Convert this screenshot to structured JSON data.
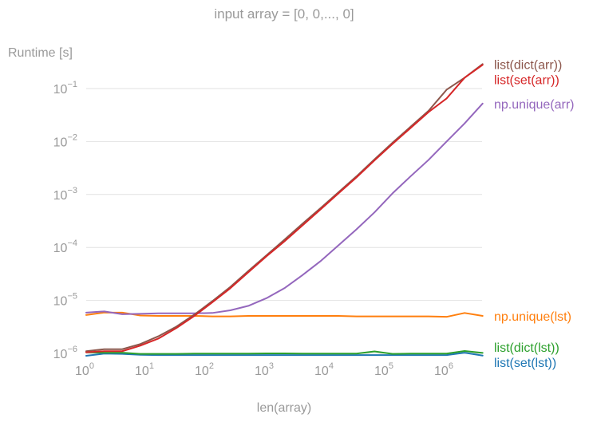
{
  "chart_data": {
    "type": "line",
    "title": "input array = [0, 0,..., 0]",
    "xlabel": "len(array)",
    "ylabel": "Runtime [s]",
    "xscale": "log",
    "yscale": "log",
    "xlim": [
      1,
      4194304
    ],
    "ylim": [
      9e-07,
      0.4
    ],
    "grid": "horizontal",
    "legend": "end-of-line labels on right",
    "x_ticks": [
      {
        "value": 1,
        "base": "10",
        "exp": "0"
      },
      {
        "value": 10,
        "base": "10",
        "exp": "1"
      },
      {
        "value": 100,
        "base": "10",
        "exp": "2"
      },
      {
        "value": 1000,
        "base": "10",
        "exp": "3"
      },
      {
        "value": 10000,
        "base": "10",
        "exp": "4"
      },
      {
        "value": 100000,
        "base": "10",
        "exp": "5"
      },
      {
        "value": 1000000,
        "base": "10",
        "exp": "6"
      }
    ],
    "y_ticks": [
      {
        "value": 1e-06,
        "base": "10",
        "exp": "−6"
      },
      {
        "value": 1e-05,
        "base": "10",
        "exp": "−5"
      },
      {
        "value": 0.0001,
        "base": "10",
        "exp": "−4"
      },
      {
        "value": 0.001,
        "base": "10",
        "exp": "−3"
      },
      {
        "value": 0.01,
        "base": "10",
        "exp": "−2"
      },
      {
        "value": 0.1,
        "base": "10",
        "exp": "−1"
      }
    ],
    "x": [
      1,
      2,
      4,
      8,
      16,
      32,
      64,
      128,
      256,
      512,
      1024,
      2048,
      4096,
      8192,
      16384,
      32768,
      65536,
      131072,
      262144,
      524288,
      1048576,
      2097152,
      4194304
    ],
    "series": [
      {
        "name": "list(dict(arr))",
        "color": "#8c564b",
        "values": [
          1.1e-06,
          1.2e-06,
          1.2e-06,
          1.5e-06,
          2.1e-06,
          3.2e-06,
          5.4e-06,
          9.7e-06,
          1.8e-05,
          3.6e-05,
          7.1e-05,
          0.00014,
          0.00028,
          0.00055,
          0.0011,
          0.0022,
          0.0046,
          0.0095,
          0.019,
          0.038,
          0.095,
          0.16,
          0.29
        ]
      },
      {
        "name": "list(set(arr))",
        "color": "#d62728",
        "values": [
          1.05e-06,
          1.1e-06,
          1.1e-06,
          1.4e-06,
          1.9e-06,
          3e-06,
          5.1e-06,
          9.2e-06,
          1.7e-05,
          3.4e-05,
          6.8e-05,
          0.00013,
          0.00026,
          0.00052,
          0.00105,
          0.0021,
          0.0044,
          0.009,
          0.018,
          0.036,
          0.065,
          0.16,
          0.28
        ]
      },
      {
        "name": "np.unique(arr)",
        "color": "#9467bd",
        "values": [
          5.9e-06,
          6.2e-06,
          5.5e-06,
          5.6e-06,
          5.7e-06,
          5.7e-06,
          5.7e-06,
          5.8e-06,
          6.5e-06,
          7.9e-06,
          1.1e-05,
          1.7e-05,
          3e-05,
          5.5e-05,
          0.00011,
          0.00022,
          0.00046,
          0.00105,
          0.0022,
          0.0045,
          0.01,
          0.022,
          0.052
        ]
      },
      {
        "name": "np.unique(lst)",
        "color": "#ff7f0e",
        "values": [
          5.3e-06,
          5.9e-06,
          5.9e-06,
          5.2e-06,
          5.1e-06,
          5.1e-06,
          5.1e-06,
          5e-06,
          5e-06,
          5.1e-06,
          5.1e-06,
          5.1e-06,
          5.1e-06,
          5.1e-06,
          5.1e-06,
          5e-06,
          5e-06,
          5e-06,
          5e-06,
          5e-06,
          4.9e-06,
          5.8e-06,
          5.1e-06
        ]
      },
      {
        "name": "list(dict(lst))",
        "color": "#2ca02c",
        "values": [
          1.05e-06,
          1.03e-06,
          1.03e-06,
          9.8e-07,
          9.8e-07,
          9.8e-07,
          9.9e-07,
          9.9e-07,
          9.9e-07,
          9.9e-07,
          1e-06,
          1e-06,
          9.9e-07,
          9.9e-07,
          9.9e-07,
          9.9e-07,
          1.09e-06,
          9.8e-07,
          9.9e-07,
          9.9e-07,
          9.9e-07,
          1.11e-06,
          1.02e-06
        ]
      },
      {
        "name": "list(set(lst))",
        "color": "#1f77b4",
        "values": [
          9e-07,
          9.9e-07,
          9.8e-07,
          9.4e-07,
          9.3e-07,
          9.3e-07,
          9.3e-07,
          9.3e-07,
          9.3e-07,
          9.3e-07,
          9.3e-07,
          9.3e-07,
          9.3e-07,
          9.3e-07,
          9.3e-07,
          9.3e-07,
          9.3e-07,
          9.3e-07,
          9.3e-07,
          9.3e-07,
          9.3e-07,
          1.03e-06,
          9.1e-07
        ]
      }
    ]
  }
}
